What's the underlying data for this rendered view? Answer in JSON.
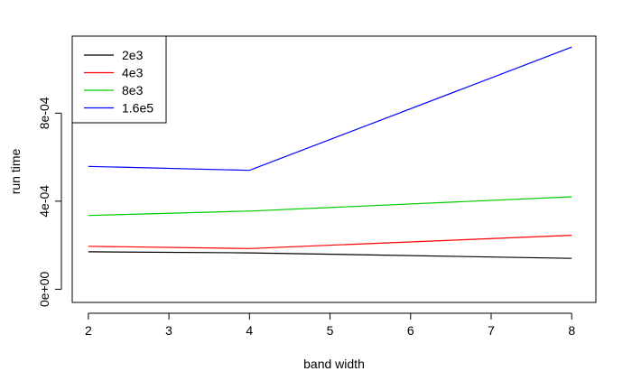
{
  "chart_data": {
    "type": "line",
    "title": "",
    "xlabel": "band width",
    "ylabel": "run time",
    "x": [
      2,
      4,
      8
    ],
    "x_ticks": [
      "2",
      "3",
      "4",
      "5",
      "6",
      "7",
      "8"
    ],
    "y_ticks": [
      "0e+00",
      "4e-04",
      "8e-04"
    ],
    "y_tick_values": [
      0,
      0.0004,
      0.0008
    ],
    "xlim": [
      1.8,
      8.3
    ],
    "ylim": [
      -6e-05,
      0.00115
    ],
    "grid": false,
    "legend_position": "top-left",
    "series": [
      {
        "name": "2e3",
        "color": "#000000",
        "values": [
          0.00017,
          0.000165,
          0.00014
        ]
      },
      {
        "name": "4e3",
        "color": "#ff0000",
        "values": [
          0.000195,
          0.000185,
          0.000245
        ]
      },
      {
        "name": "8e3",
        "color": "#00cc00",
        "values": [
          0.000335,
          0.000355,
          0.00042
        ]
      },
      {
        "name": "1.6e5",
        "color": "#0000ff",
        "values": [
          0.000558,
          0.00054,
          0.0011
        ]
      }
    ]
  }
}
